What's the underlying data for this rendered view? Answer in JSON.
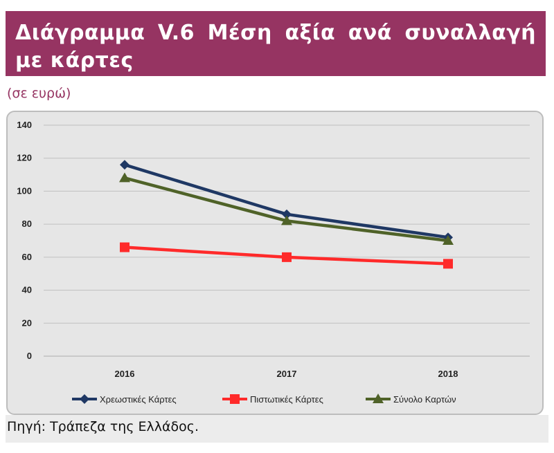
{
  "header": {
    "title": "Διάγραμμα V.6 Μέση αξία ανά συναλλαγή με κάρτες",
    "unit_note": "(σε ευρώ)"
  },
  "footer": {
    "source": "Πηγή: Τράπεζα της Ελλάδος."
  },
  "chart_data": {
    "type": "line",
    "title": "Διάγραμμα V.6 Μέση αξία ανά συναλλαγή με κάρτες",
    "subtitle": "(σε ευρώ)",
    "xlabel": "",
    "ylabel": "",
    "categories": [
      "2016",
      "2017",
      "2018"
    ],
    "ylim": [
      0,
      140
    ],
    "yticks": [
      0,
      20,
      40,
      60,
      80,
      100,
      120,
      140
    ],
    "grid": true,
    "legend_position": "bottom",
    "series": [
      {
        "name": "Χρεωστικές Κάρτες",
        "values": [
          116,
          86,
          72
        ],
        "color": "#1f3864",
        "marker": "diamond"
      },
      {
        "name": "Πιστωτικές Κάρτες",
        "values": [
          66,
          60,
          56
        ],
        "color": "#ff2a2a",
        "marker": "square"
      },
      {
        "name": "Σύνολο Καρτών",
        "values": [
          108,
          82,
          70
        ],
        "color": "#4f6228",
        "marker": "triangle"
      }
    ]
  }
}
